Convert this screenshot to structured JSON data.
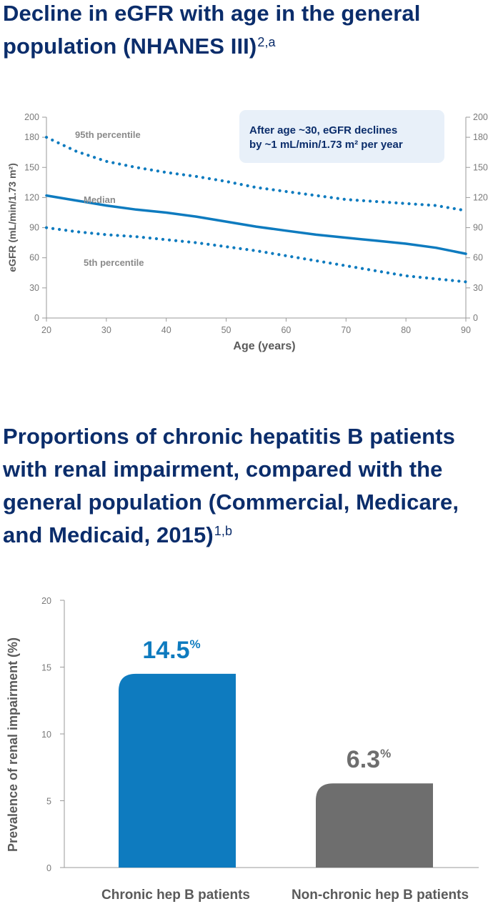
{
  "section1": {
    "title": "Decline in eGFR with age in the general population (NHANES III)",
    "title_sup": "2,a"
  },
  "section2": {
    "title": "Proportions of chronic hepatitis B patients with renal impairment, compared with the general  population (Commercial, Medicare, and Medicaid, 2015)",
    "title_sup": "1,b"
  },
  "colors": {
    "navy": "#0b2d6b",
    "blue": "#0e7bbf",
    "gray": "#6e6e6e",
    "callout_bg": "#e8f0f9"
  },
  "chart_data": [
    {
      "type": "line",
      "xlabel": "Age (years)",
      "ylabel": "eGFR (mL/min/1.73 m²)",
      "xlim": [
        20,
        90
      ],
      "ylim": [
        0,
        200
      ],
      "x_ticks": [
        20,
        30,
        40,
        50,
        60,
        70,
        80,
        90
      ],
      "y_ticks": [
        0,
        30,
        60,
        90,
        120,
        150,
        180,
        200
      ],
      "x": [
        20,
        25,
        30,
        35,
        40,
        45,
        50,
        55,
        60,
        65,
        70,
        75,
        80,
        85,
        90
      ],
      "series": [
        {
          "name": "95th percentile",
          "style": "dotted",
          "values": [
            180,
            166,
            156,
            150,
            145,
            141,
            136,
            130,
            126,
            122,
            118,
            116,
            114,
            112,
            107
          ]
        },
        {
          "name": "Median",
          "style": "solid",
          "values": [
            122,
            117,
            112,
            108,
            105,
            101,
            96,
            91,
            87,
            83,
            80,
            77,
            74,
            70,
            64
          ]
        },
        {
          "name": "5th percentile",
          "style": "dotted",
          "values": [
            90,
            86,
            83,
            81,
            78,
            75,
            71,
            67,
            62,
            57,
            52,
            47,
            42,
            39,
            36
          ]
        }
      ],
      "annotation": [
        "After age ~30, eGFR declines",
        "by ~1 mL/min/1.73 m²  per year"
      ]
    },
    {
      "type": "bar",
      "ylabel": "Prevalence of renal impairment (%)",
      "ylim": [
        0,
        20
      ],
      "y_ticks": [
        0,
        5,
        10,
        15,
        20
      ],
      "categories": [
        "Chronic hep B patients",
        "Non-chronic hep B patients"
      ],
      "values": [
        14.5,
        6.3
      ],
      "value_labels": [
        "14.5",
        "6.3"
      ],
      "value_suffix": "%"
    }
  ]
}
